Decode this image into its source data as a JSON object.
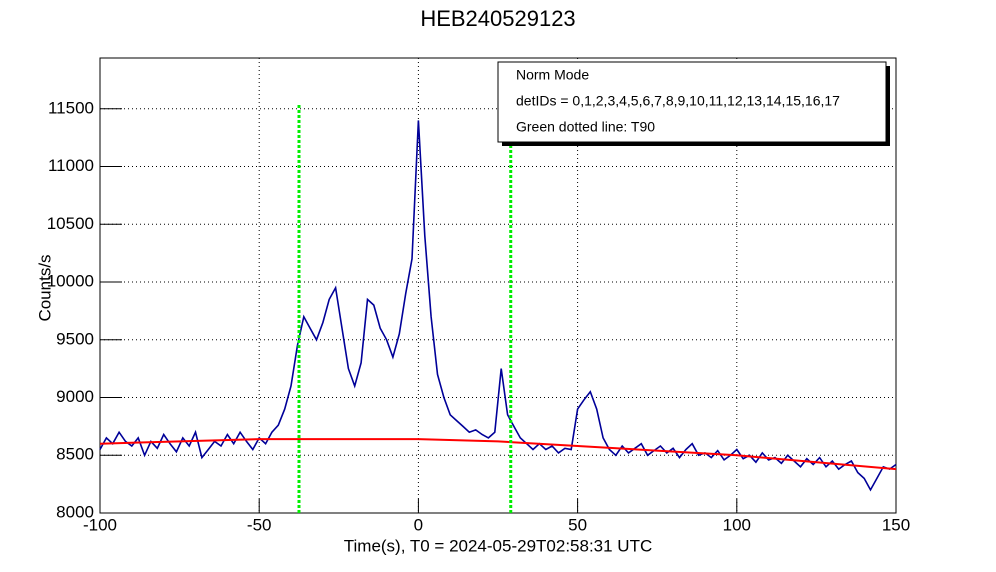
{
  "chart_data": {
    "type": "line",
    "title": "HEB240529123",
    "xlabel": "Time(s), T0 = 2024-05-29T02:58:31 UTC",
    "ylabel": "Counts/s",
    "x": [
      -100,
      -98,
      -96,
      -94,
      -92,
      -90,
      -88,
      -86,
      -84,
      -82,
      -80,
      -78,
      -76,
      -74,
      -72,
      -70,
      -68,
      -66,
      -64,
      -62,
      -60,
      -58,
      -56,
      -54,
      -52,
      -50,
      -48,
      -46,
      -44,
      -42,
      -40,
      -38,
      -36,
      -34,
      -32,
      -30,
      -28,
      -26,
      -24,
      -22,
      -20,
      -18,
      -16,
      -14,
      -12,
      -10,
      -8,
      -6,
      -4,
      -2,
      0,
      2,
      4,
      6,
      8,
      10,
      12,
      14,
      16,
      18,
      20,
      22,
      24,
      26,
      28,
      30,
      32,
      34,
      36,
      38,
      40,
      42,
      44,
      46,
      48,
      50,
      52,
      54,
      56,
      58,
      60,
      62,
      64,
      66,
      68,
      70,
      72,
      74,
      76,
      78,
      80,
      82,
      84,
      86,
      88,
      90,
      92,
      94,
      96,
      98,
      100,
      102,
      104,
      106,
      108,
      110,
      112,
      114,
      116,
      118,
      120,
      122,
      124,
      126,
      128,
      130,
      132,
      134,
      136,
      138,
      140,
      142,
      144,
      146,
      148,
      150
    ],
    "values": [
      8550,
      8650,
      8600,
      8700,
      8620,
      8580,
      8650,
      8500,
      8620,
      8560,
      8680,
      8600,
      8530,
      8650,
      8580,
      8700,
      8480,
      8550,
      8620,
      8580,
      8680,
      8600,
      8700,
      8620,
      8550,
      8650,
      8600,
      8700,
      8760,
      8900,
      9100,
      9450,
      9700,
      9600,
      9500,
      9650,
      9850,
      9950,
      9600,
      9250,
      9100,
      9300,
      9850,
      9800,
      9600,
      9500,
      9350,
      9550,
      9900,
      10200,
      11400,
      10400,
      9700,
      9200,
      9000,
      8850,
      8800,
      8750,
      8700,
      8720,
      8680,
      8650,
      8700,
      9250,
      8850,
      8750,
      8650,
      8600,
      8550,
      8600,
      8550,
      8580,
      8520,
      8560,
      8550,
      8900,
      8980,
      9050,
      8900,
      8650,
      8550,
      8500,
      8580,
      8520,
      8560,
      8600,
      8500,
      8540,
      8580,
      8520,
      8560,
      8480,
      8550,
      8600,
      8500,
      8520,
      8480,
      8540,
      8460,
      8500,
      8550,
      8470,
      8500,
      8440,
      8520,
      8460,
      8480,
      8430,
      8500,
      8450,
      8400,
      8470,
      8420,
      8480,
      8400,
      8450,
      8380,
      8420,
      8450,
      8350,
      8300,
      8200,
      8300,
      8400,
      8380,
      8420
    ],
    "color": "#000099",
    "background": {
      "x": [
        -100,
        -50,
        0,
        25,
        50,
        100,
        150
      ],
      "values": [
        8600,
        8640,
        8640,
        8620,
        8580,
        8500,
        8380
      ],
      "color": "#ff0000"
    },
    "t90": {
      "values": [
        -37.5,
        29
      ],
      "color": "#00ee00"
    },
    "xlim": [
      -100,
      150
    ],
    "xticks": [
      -100,
      -50,
      0,
      50,
      100,
      150
    ],
    "ylim": [
      8000,
      11940
    ],
    "yticks": [
      8000,
      8500,
      9000,
      9500,
      10000,
      10500,
      11000,
      11500
    ],
    "grid": true,
    "legend": {
      "lines": [
        "Norm Mode",
        "detIDs = 0,1,2,3,4,5,6,7,8,9,10,11,12,13,14,15,16,17",
        "Green dotted line: T90"
      ],
      "corner": "top-right"
    }
  }
}
